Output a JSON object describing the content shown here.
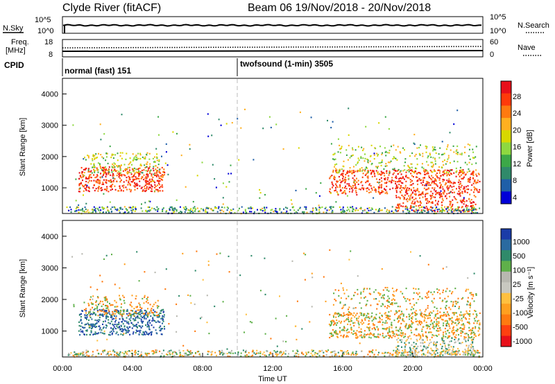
{
  "header": {
    "station": "Clyde River (fitACF)",
    "beam_date": "Beam 06  19/Nov/2018 - 20/Nov/2018"
  },
  "noise_panel": {
    "left_label": "N.Sky",
    "left_ticks": [
      "10^5",
      "10^0"
    ],
    "right_label": "N.Search",
    "right_ticks": [
      "10^5",
      "10^0"
    ]
  },
  "freq_panel": {
    "left_label_1": "Freq.",
    "left_label_2": "[MHz]",
    "left_ticks": [
      "18",
      "8"
    ],
    "right_label": "Nave",
    "right_ticks": [
      "60",
      "0"
    ]
  },
  "cpid": {
    "label": "CPID",
    "mode1": "normal (fast) 151",
    "mode2": "twofsound (1-min) 3505"
  },
  "chart_data": [
    {
      "type": "heatmap",
      "parameter": "Power",
      "ylabel": "Slant Range [km]",
      "y_ticks": [
        "4000",
        "3000",
        "2000",
        "1000"
      ],
      "ylim": [
        180,
        4500
      ],
      "xlim_hours": [
        0,
        24
      ],
      "colorbar_label": "Power [dB]",
      "colorbar_ticks": [
        "28",
        "24",
        "20",
        "16",
        "12",
        "8",
        "4"
      ],
      "colorbar_colors": [
        "#e8101a",
        "#ff3a0a",
        "#ff7a10",
        "#ffb020",
        "#d8d800",
        "#8ed840",
        "#3ca848",
        "#2f8a6a",
        "#1f5fa8",
        "#0000d8"
      ]
    },
    {
      "type": "heatmap",
      "parameter": "Velocity",
      "ylabel": "Slant Range [km]",
      "y_ticks": [
        "4000",
        "3000",
        "2000",
        "1000"
      ],
      "ylim": [
        180,
        4500
      ],
      "xlim_hours": [
        0,
        24
      ],
      "colorbar_label": "Velocity [m s⁻¹]",
      "colorbar_ticks": [
        "1000",
        "500",
        "100",
        "25",
        "-25",
        "-100",
        "-500",
        "-1000"
      ],
      "colorbar_colors": [
        "#1a3ca8",
        "#2a6aa0",
        "#2f8a6a",
        "#5fb04a",
        "#b8b8b0",
        "#c8c8c0",
        "#ffc040",
        "#ffa020",
        "#ff7a10",
        "#ff4010",
        "#e8101a"
      ]
    }
  ],
  "x_axis": {
    "ticks": [
      "00:00",
      "04:00",
      "08:00",
      "12:00",
      "16:00",
      "20:00",
      "00:00"
    ],
    "label": "Time UT"
  }
}
